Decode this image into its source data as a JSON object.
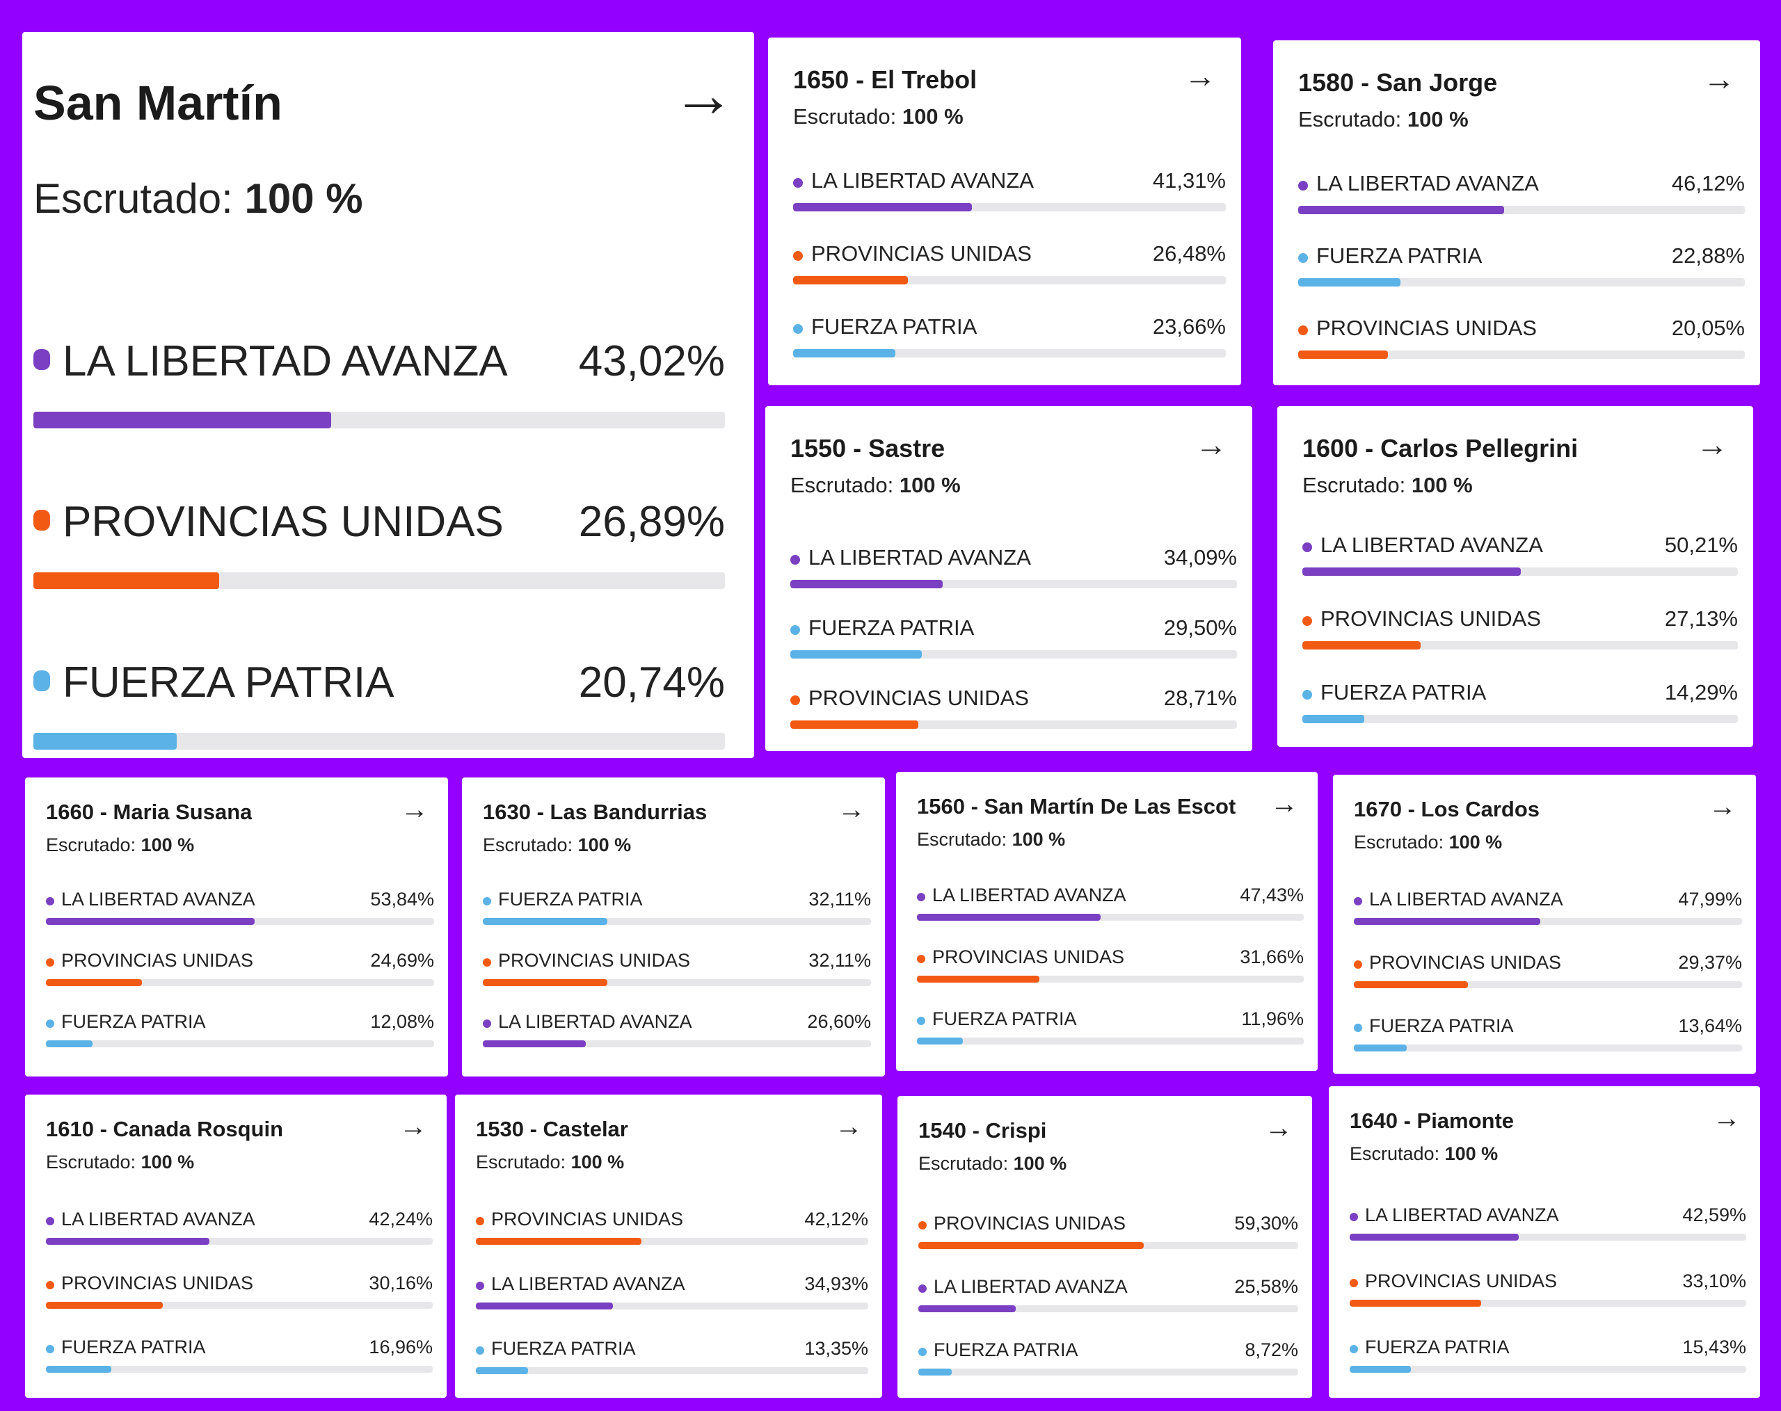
{
  "labels": {
    "scrutiny_label": "Escrutado:"
  },
  "party_colors": {
    "LA LIBERTAD AVANZA": "#7a3fc2",
    "PROVINCIAS UNIDAS": "#f25a14",
    "FUERZA PATRIA": "#5ab2e6"
  },
  "cards": [
    {
      "title": "San Martín",
      "scrutiny": "100 %",
      "rows": [
        {
          "party": "LA LIBERTAD AVANZA",
          "pct": "43,02%",
          "value": 43.02
        },
        {
          "party": "PROVINCIAS UNIDAS",
          "pct": "26,89%",
          "value": 26.89
        },
        {
          "party": "FUERZA PATRIA",
          "pct": "20,74%",
          "value": 20.74
        }
      ]
    },
    {
      "title": "1650 - El Trebol",
      "scrutiny": "100 %",
      "rows": [
        {
          "party": "LA LIBERTAD AVANZA",
          "pct": "41,31%",
          "value": 41.31
        },
        {
          "party": "PROVINCIAS UNIDAS",
          "pct": "26,48%",
          "value": 26.48
        },
        {
          "party": "FUERZA PATRIA",
          "pct": "23,66%",
          "value": 23.66
        }
      ]
    },
    {
      "title": "1580 - San Jorge",
      "scrutiny": "100 %",
      "rows": [
        {
          "party": "LA LIBERTAD AVANZA",
          "pct": "46,12%",
          "value": 46.12
        },
        {
          "party": "FUERZA PATRIA",
          "pct": "22,88%",
          "value": 22.88
        },
        {
          "party": "PROVINCIAS UNIDAS",
          "pct": "20,05%",
          "value": 20.05
        }
      ]
    },
    {
      "title": "1550 - Sastre",
      "scrutiny": "100 %",
      "rows": [
        {
          "party": "LA LIBERTAD AVANZA",
          "pct": "34,09%",
          "value": 34.09
        },
        {
          "party": "FUERZA PATRIA",
          "pct": "29,50%",
          "value": 29.5
        },
        {
          "party": "PROVINCIAS UNIDAS",
          "pct": "28,71%",
          "value": 28.71
        }
      ]
    },
    {
      "title": "1600 - Carlos Pellegrini",
      "scrutiny": "100 %",
      "rows": [
        {
          "party": "LA LIBERTAD AVANZA",
          "pct": "50,21%",
          "value": 50.21
        },
        {
          "party": "PROVINCIAS UNIDAS",
          "pct": "27,13%",
          "value": 27.13
        },
        {
          "party": "FUERZA PATRIA",
          "pct": "14,29%",
          "value": 14.29
        }
      ]
    },
    {
      "title": "1660 - Maria Susana",
      "scrutiny": "100 %",
      "rows": [
        {
          "party": "LA LIBERTAD AVANZA",
          "pct": "53,84%",
          "value": 53.84
        },
        {
          "party": "PROVINCIAS UNIDAS",
          "pct": "24,69%",
          "value": 24.69
        },
        {
          "party": "FUERZA PATRIA",
          "pct": "12,08%",
          "value": 12.08
        }
      ]
    },
    {
      "title": "1630 - Las Bandurrias",
      "scrutiny": "100 %",
      "rows": [
        {
          "party": "FUERZA PATRIA",
          "pct": "32,11%",
          "value": 32.11
        },
        {
          "party": "PROVINCIAS UNIDAS",
          "pct": "32,11%",
          "value": 32.11
        },
        {
          "party": "LA LIBERTAD AVANZA",
          "pct": "26,60%",
          "value": 26.6
        }
      ]
    },
    {
      "title": "1560 - San Martín De Las Escot",
      "scrutiny": "100 %",
      "rows": [
        {
          "party": "LA LIBERTAD AVANZA",
          "pct": "47,43%",
          "value": 47.43
        },
        {
          "party": "PROVINCIAS UNIDAS",
          "pct": "31,66%",
          "value": 31.66
        },
        {
          "party": "FUERZA PATRIA",
          "pct": "11,96%",
          "value": 11.96
        }
      ]
    },
    {
      "title": "1670 - Los Cardos",
      "scrutiny": "100 %",
      "rows": [
        {
          "party": "LA LIBERTAD AVANZA",
          "pct": "47,99%",
          "value": 47.99
        },
        {
          "party": "PROVINCIAS UNIDAS",
          "pct": "29,37%",
          "value": 29.37
        },
        {
          "party": "FUERZA PATRIA",
          "pct": "13,64%",
          "value": 13.64
        }
      ]
    },
    {
      "title": "1610 - Canada Rosquin",
      "scrutiny": "100 %",
      "rows": [
        {
          "party": "LA LIBERTAD AVANZA",
          "pct": "42,24%",
          "value": 42.24
        },
        {
          "party": "PROVINCIAS UNIDAS",
          "pct": "30,16%",
          "value": 30.16
        },
        {
          "party": "FUERZA PATRIA",
          "pct": "16,96%",
          "value": 16.96
        }
      ]
    },
    {
      "title": "1530 - Castelar",
      "scrutiny": "100 %",
      "rows": [
        {
          "party": "PROVINCIAS UNIDAS",
          "pct": "42,12%",
          "value": 42.12
        },
        {
          "party": "LA LIBERTAD AVANZA",
          "pct": "34,93%",
          "value": 34.93
        },
        {
          "party": "FUERZA PATRIA",
          "pct": "13,35%",
          "value": 13.35
        }
      ]
    },
    {
      "title": "1540 - Crispi",
      "scrutiny": "100 %",
      "rows": [
        {
          "party": "PROVINCIAS UNIDAS",
          "pct": "59,30%",
          "value": 59.3
        },
        {
          "party": "LA LIBERTAD AVANZA",
          "pct": "25,58%",
          "value": 25.58
        },
        {
          "party": "FUERZA PATRIA",
          "pct": "8,72%",
          "value": 8.72
        }
      ]
    },
    {
      "title": "1640 - Piamonte",
      "scrutiny": "100 %",
      "rows": [
        {
          "party": "LA LIBERTAD AVANZA",
          "pct": "42,59%",
          "value": 42.59
        },
        {
          "party": "PROVINCIAS UNIDAS",
          "pct": "33,10%",
          "value": 33.1
        },
        {
          "party": "FUERZA PATRIA",
          "pct": "15,43%",
          "value": 15.43
        }
      ]
    }
  ]
}
